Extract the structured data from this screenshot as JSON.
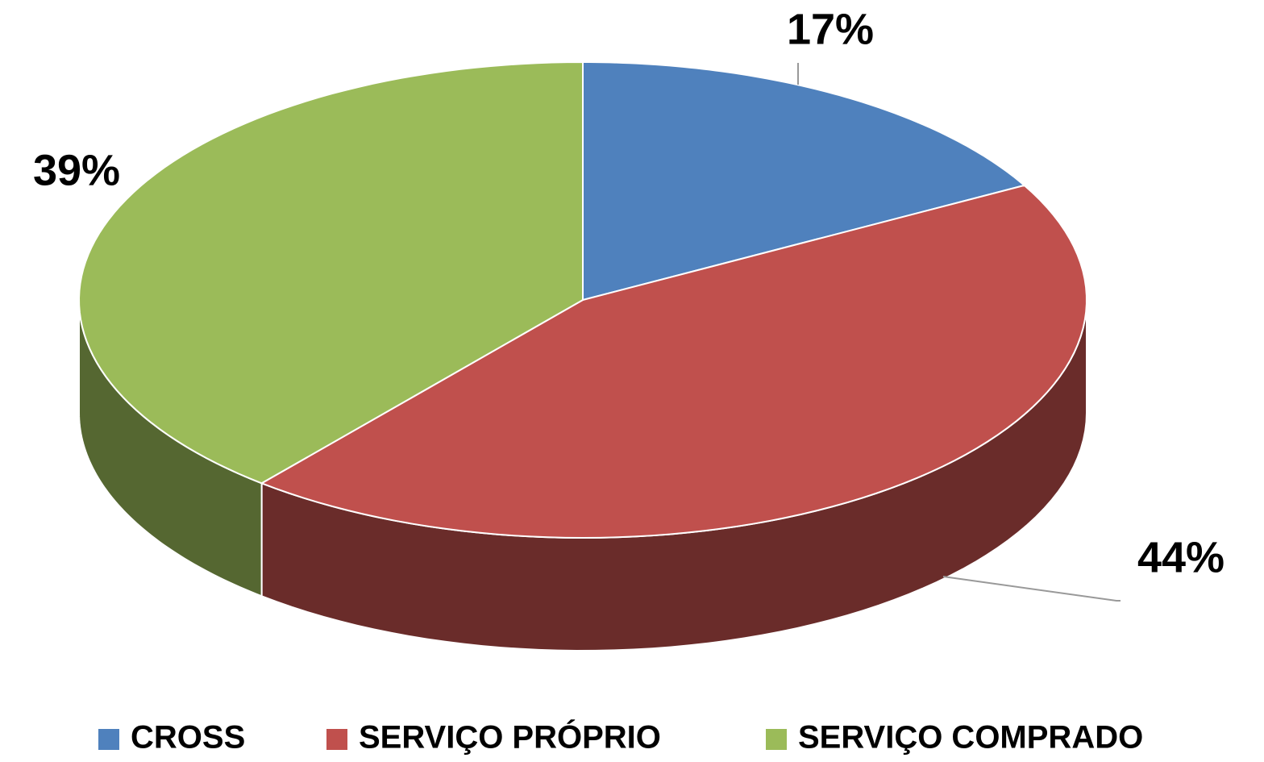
{
  "chart_data": {
    "type": "pie",
    "categories": [
      "CROSS",
      "SERVIÇO PRÓPRIO",
      "SERVIÇO COMPRADO"
    ],
    "values": [
      17,
      44,
      39
    ],
    "value_labels": [
      "17%",
      "44%",
      "39%"
    ],
    "colors": [
      "#4f81bd",
      "#c0504d",
      "#9bbb59"
    ],
    "legend": "bottom"
  }
}
